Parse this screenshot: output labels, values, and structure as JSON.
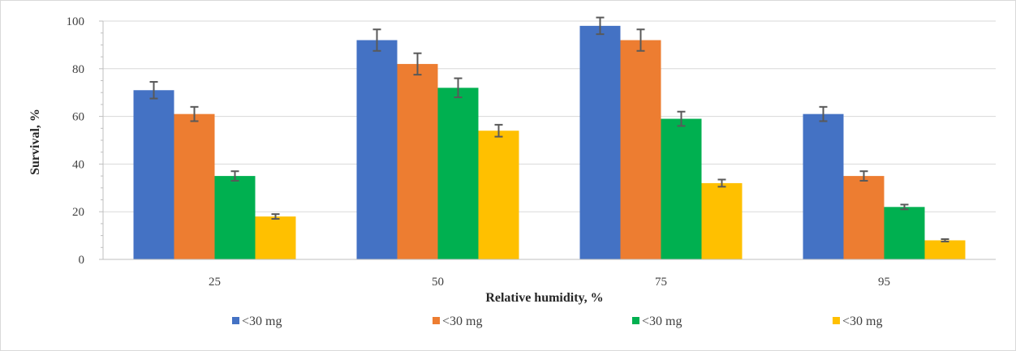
{
  "chart_data": {
    "type": "bar",
    "xlabel": "Relative humidity, %",
    "ylabel": "Survival, %",
    "categories": [
      "25",
      "50",
      "75",
      "95"
    ],
    "ylim": [
      0,
      100
    ],
    "yticks": [
      0,
      20,
      40,
      60,
      80,
      100
    ],
    "grid": true,
    "legend_position": "bottom",
    "series": [
      {
        "name": "<30 mg",
        "color": "#4472c4",
        "values": [
          71,
          92,
          98,
          61
        ],
        "errors": [
          3.5,
          4.5,
          3.5,
          3
        ]
      },
      {
        "name": "<30 mg",
        "color": "#ed7d31",
        "values": [
          61,
          82,
          92,
          35
        ],
        "errors": [
          3,
          4.5,
          4.5,
          2
        ]
      },
      {
        "name": "<30 mg",
        "color": "#00b050",
        "values": [
          35,
          72,
          59,
          22
        ],
        "errors": [
          2,
          4,
          3,
          1
        ]
      },
      {
        "name": "<30 mg",
        "color": "#ffc000",
        "values": [
          18,
          54,
          32,
          8
        ],
        "errors": [
          1,
          2.5,
          1.5,
          0.5
        ]
      }
    ]
  }
}
